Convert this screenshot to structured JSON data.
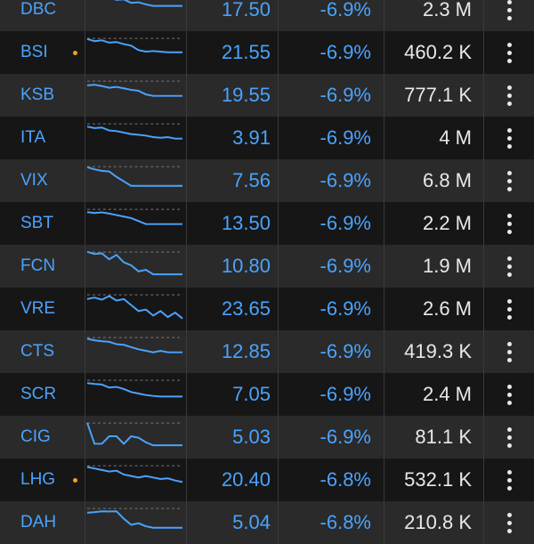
{
  "colors": {
    "accent": "#4aa3ff",
    "volume_text": "#e8e8e8",
    "marker": "#f0a020",
    "row_odd": "#2a2a2a",
    "row_even": "#161616"
  },
  "rows": [
    {
      "symbol": "DBC",
      "marker": false,
      "price": "17.50",
      "change": "-6.9%",
      "volume": "2.3 M",
      "spark": [
        0.9,
        0.9,
        0.85,
        0.88,
        0.8,
        0.82,
        0.7,
        0.72,
        0.65,
        0.6,
        0.6,
        0.6,
        0.6,
        0.6
      ]
    },
    {
      "symbol": "BSI",
      "marker": true,
      "price": "21.55",
      "change": "-6.9%",
      "volume": "460.2 K",
      "spark": [
        0.92,
        0.85,
        0.88,
        0.8,
        0.82,
        0.75,
        0.7,
        0.55,
        0.5,
        0.52,
        0.5,
        0.48,
        0.48,
        0.48
      ]
    },
    {
      "symbol": "KSB",
      "marker": false,
      "price": "19.55",
      "change": "-6.9%",
      "volume": "777.1 K",
      "spark": [
        0.8,
        0.82,
        0.78,
        0.72,
        0.75,
        0.7,
        0.65,
        0.62,
        0.5,
        0.45,
        0.45,
        0.45,
        0.45,
        0.45
      ]
    },
    {
      "symbol": "ITA",
      "marker": false,
      "price": "3.91",
      "change": "-6.9%",
      "volume": "4 M",
      "spark": [
        0.85,
        0.8,
        0.82,
        0.72,
        0.7,
        0.65,
        0.6,
        0.58,
        0.55,
        0.5,
        0.48,
        0.5,
        0.45,
        0.45
      ]
    },
    {
      "symbol": "VIX",
      "marker": false,
      "price": "7.56",
      "change": "-6.9%",
      "volume": "6.8 M",
      "spark": [
        0.92,
        0.85,
        0.8,
        0.78,
        0.6,
        0.45,
        0.3,
        0.3,
        0.3,
        0.3,
        0.3,
        0.3,
        0.3,
        0.3
      ]
    },
    {
      "symbol": "SBT",
      "marker": false,
      "price": "13.50",
      "change": "-6.9%",
      "volume": "2.2 M",
      "spark": [
        0.85,
        0.82,
        0.84,
        0.8,
        0.75,
        0.7,
        0.65,
        0.55,
        0.45,
        0.45,
        0.45,
        0.45,
        0.45,
        0.45
      ]
    },
    {
      "symbol": "FCN",
      "marker": false,
      "price": "10.80",
      "change": "-6.9%",
      "volume": "1.9 M",
      "spark": [
        0.95,
        0.88,
        0.9,
        0.7,
        0.85,
        0.6,
        0.5,
        0.3,
        0.35,
        0.2,
        0.2,
        0.2,
        0.2,
        0.2
      ]
    },
    {
      "symbol": "VRE",
      "marker": false,
      "price": "23.65",
      "change": "-6.9%",
      "volume": "2.6 M",
      "spark": [
        0.8,
        0.85,
        0.78,
        0.9,
        0.75,
        0.8,
        0.6,
        0.4,
        0.45,
        0.25,
        0.4,
        0.2,
        0.35,
        0.15
      ]
    },
    {
      "symbol": "CTS",
      "marker": false,
      "price": "12.85",
      "change": "-6.9%",
      "volume": "419.3 K",
      "spark": [
        0.9,
        0.85,
        0.82,
        0.8,
        0.72,
        0.7,
        0.62,
        0.55,
        0.5,
        0.45,
        0.5,
        0.45,
        0.45,
        0.45
      ]
    },
    {
      "symbol": "SCR",
      "marker": false,
      "price": "7.05",
      "change": "-6.9%",
      "volume": "2.4 M",
      "spark": [
        0.85,
        0.82,
        0.8,
        0.7,
        0.72,
        0.65,
        0.55,
        0.5,
        0.45,
        0.42,
        0.4,
        0.4,
        0.4,
        0.4
      ]
    },
    {
      "symbol": "CIG",
      "marker": false,
      "price": "5.03",
      "change": "-6.9%",
      "volume": "81.1 K",
      "spark": [
        0.95,
        0.25,
        0.25,
        0.5,
        0.5,
        0.25,
        0.5,
        0.45,
        0.3,
        0.2,
        0.2,
        0.2,
        0.2,
        0.2
      ]
    },
    {
      "symbol": "LHG",
      "marker": true,
      "price": "20.40",
      "change": "-6.8%",
      "volume": "532.1 K",
      "spark": [
        0.9,
        0.85,
        0.8,
        0.75,
        0.78,
        0.65,
        0.6,
        0.55,
        0.6,
        0.55,
        0.5,
        0.52,
        0.45,
        0.4
      ]
    },
    {
      "symbol": "DAH",
      "marker": false,
      "price": "5.04",
      "change": "-6.8%",
      "volume": "210.8 K",
      "spark": [
        0.8,
        0.82,
        0.85,
        0.84,
        0.85,
        0.6,
        0.4,
        0.45,
        0.35,
        0.3,
        0.3,
        0.3,
        0.3,
        0.3
      ]
    }
  ]
}
